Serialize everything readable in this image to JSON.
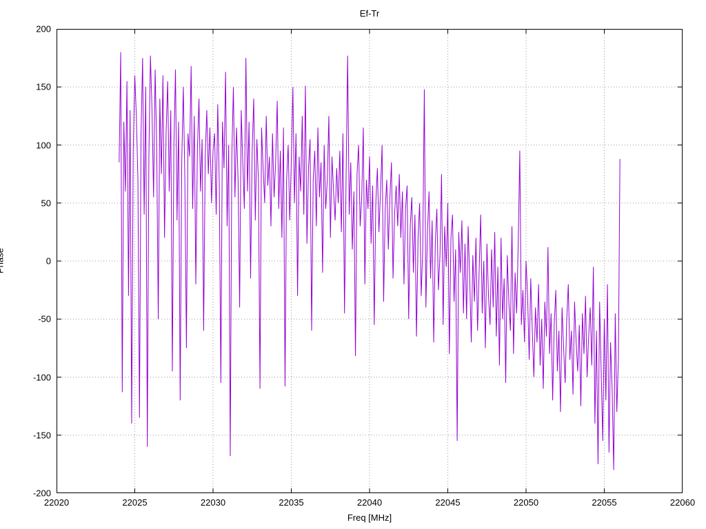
{
  "chart_data": {
    "type": "line",
    "title": "Ef-Tr",
    "xlabel": "Freq [MHz]",
    "ylabel": "Phase",
    "xlim": [
      22020,
      22060
    ],
    "ylim": [
      -200,
      200
    ],
    "x_ticks": [
      22020,
      22025,
      22030,
      22035,
      22040,
      22045,
      22050,
      22055,
      22060
    ],
    "y_ticks": [
      -200,
      -150,
      -100,
      -50,
      0,
      50,
      100,
      150,
      200
    ],
    "grid": true,
    "legend": "none",
    "grid_color": "#9a9a9a",
    "border_color": "#000000",
    "series": [
      {
        "name": "Ef-Tr",
        "color": "#9400D3",
        "x_start": 22024.0,
        "x_step": 0.1,
        "values": [
          85,
          180,
          -113,
          120,
          60,
          155,
          -30,
          130,
          -140,
          95,
          160,
          125,
          70,
          -135,
          110,
          175,
          40,
          150,
          -160,
          90,
          177,
          130,
          55,
          165,
          100,
          -50,
          140,
          75,
          160,
          20,
          110,
          155,
          60,
          130,
          -95,
          100,
          165,
          35,
          120,
          -120,
          85,
          150,
          70,
          -75,
          110,
          90,
          168,
          45,
          125,
          -20,
          95,
          140,
          60,
          105,
          -60,
          90,
          130,
          75,
          115,
          50,
          95,
          110,
          40,
          135,
          65,
          -105,
          120,
          80,
          163,
          30,
          100,
          -168,
          90,
          150,
          55,
          115,
          70,
          -40,
          130,
          85,
          45,
          175,
          60,
          120,
          -15,
          95,
          140,
          35,
          105,
          70,
          -110,
          115,
          80,
          50,
          125,
          65,
          90,
          30,
          110,
          55,
          85,
          138,
          45,
          95,
          20,
          115,
          -108,
          70,
          100,
          35,
          85,
          150,
          50,
          110,
          -30,
          90,
          60,
          125,
          40,
          151,
          15,
          80,
          105,
          -60,
          70,
          95,
          30,
          115,
          55,
          85,
          -10,
          100,
          45,
          70,
          125,
          20,
          90,
          60,
          35,
          80,
          50,
          95,
          25,
          110,
          -45,
          70,
          177,
          40,
          85,
          10,
          60,
          -82,
          75,
          100,
          30,
          55,
          115,
          -20,
          70,
          45,
          90,
          15,
          65,
          -55,
          50,
          80,
          25,
          60,
          100,
          -35,
          45,
          70,
          10,
          55,
          85,
          -15,
          40,
          65,
          30,
          75,
          20,
          60,
          -20,
          45,
          65,
          -50,
          30,
          55,
          -10,
          40,
          -65,
          20,
          50,
          -30,
          10,
          148,
          -40,
          25,
          60,
          -15,
          35,
          -70,
          15,
          45,
          -25,
          5,
          75,
          -55,
          30,
          -5,
          50,
          -80,
          20,
          40,
          -35,
          10,
          -155,
          25,
          -10,
          35,
          -45,
          15,
          -50,
          30,
          -15,
          -70,
          5,
          -35,
          20,
          -60,
          -10,
          40,
          -45,
          0,
          -75,
          15,
          -30,
          -55,
          10,
          -40,
          25,
          -65,
          -5,
          -90,
          20,
          -50,
          -15,
          -105,
          5,
          -35,
          -60,
          30,
          -80,
          -10,
          -45,
          15,
          95,
          -55,
          -25,
          -70,
          0,
          -30,
          -85,
          -15,
          -60,
          -100,
          -40,
          -70,
          -20,
          -90,
          -50,
          -110,
          -35,
          -65,
          12,
          -80,
          -45,
          -120,
          -55,
          -25,
          -95,
          -60,
          -130,
          -40,
          -75,
          -105,
          -50,
          -20,
          -85,
          -60,
          -115,
          -35,
          -70,
          -95,
          -55,
          -125,
          -45,
          -80,
          -30,
          -100,
          -65,
          -40,
          -90,
          -5,
          -140,
          -60,
          -175,
          -35,
          -95,
          -155,
          -50,
          -120,
          -20,
          -165,
          -70,
          -110,
          -180,
          -45,
          -130,
          -85,
          88
        ]
      }
    ]
  }
}
